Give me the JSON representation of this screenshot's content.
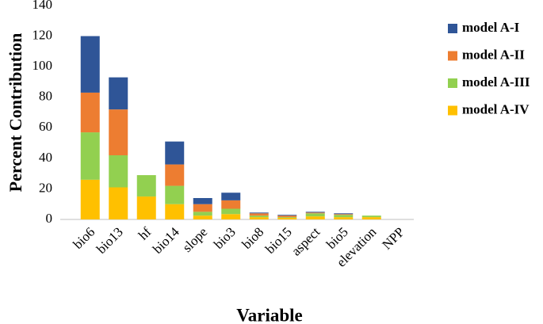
{
  "chart_data": {
    "type": "stacked_bar",
    "y_label": "Percent Contribution",
    "x_label": "Variable",
    "categories": [
      "bio6",
      "bio13",
      "hf",
      "bio14",
      "slope",
      "bio3",
      "bio8",
      "bio15",
      "aspect",
      "bio5",
      "elevation",
      "NPP"
    ],
    "series": [
      {
        "name": "model A-IV",
        "color": "#ffc000",
        "values": [
          26,
          21,
          15,
          10,
          2.5,
          3.5,
          1.5,
          1,
          2,
          1.5,
          1.5,
          0
        ]
      },
      {
        "name": "model A-III",
        "color": "#92d050",
        "values": [
          31,
          21,
          14,
          12,
          2.5,
          3.5,
          1,
          0.5,
          2,
          1.5,
          1,
          0
        ]
      },
      {
        "name": "model A-II",
        "color": "#ed7d31",
        "values": [
          26,
          30,
          0,
          14,
          5,
          5.5,
          1.5,
          1,
          0.5,
          0.5,
          0,
          0
        ]
      },
      {
        "name": "model A-I",
        "color": "#2f5597",
        "values": [
          37,
          21,
          0,
          15,
          4,
          5,
          0.5,
          0.5,
          0.5,
          0.5,
          0,
          0
        ]
      }
    ],
    "ylim": [
      0,
      140
    ],
    "yticks": [
      0,
      20,
      40,
      60,
      80,
      100,
      120,
      140
    ]
  }
}
